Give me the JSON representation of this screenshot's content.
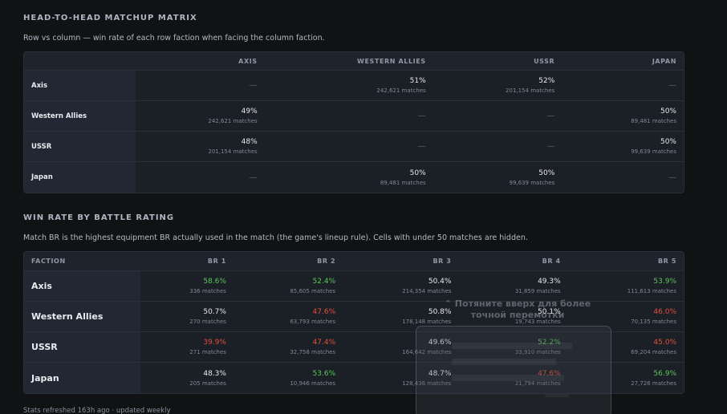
{
  "h2h": {
    "title": "HEAD-TO-HEAD MATCHUP MATRIX",
    "description": "Row vs column — win rate of each row faction when facing the column faction.",
    "columns": [
      "AXIS",
      "WESTERN ALLIES",
      "USSR",
      "JAPAN"
    ],
    "rows": [
      {
        "faction": "Axis",
        "cells": [
          {
            "pct": "—",
            "matches": ""
          },
          {
            "pct": "51%",
            "matches": "242,621 matches"
          },
          {
            "pct": "52%",
            "matches": "201,154 matches"
          },
          {
            "pct": "—",
            "matches": ""
          }
        ]
      },
      {
        "faction": "Western Allies",
        "cells": [
          {
            "pct": "49%",
            "matches": "242,621 matches"
          },
          {
            "pct": "—",
            "matches": ""
          },
          {
            "pct": "—",
            "matches": ""
          },
          {
            "pct": "50%",
            "matches": "89,481 matches"
          }
        ]
      },
      {
        "faction": "USSR",
        "cells": [
          {
            "pct": "48%",
            "matches": "201,154 matches"
          },
          {
            "pct": "—",
            "matches": ""
          },
          {
            "pct": "—",
            "matches": ""
          },
          {
            "pct": "50%",
            "matches": "99,639 matches"
          }
        ]
      },
      {
        "faction": "Japan",
        "cells": [
          {
            "pct": "—",
            "matches": ""
          },
          {
            "pct": "50%",
            "matches": "89,481 matches"
          },
          {
            "pct": "50%",
            "matches": "99,639 matches"
          },
          {
            "pct": "—",
            "matches": ""
          }
        ]
      }
    ]
  },
  "br": {
    "title": "WIN RATE BY BATTLE RATING",
    "description": "Match BR is the highest equipment BR actually used in the match (the game's lineup rule). Cells with under 50 matches are hidden.",
    "faction_header": "FACTION",
    "columns": [
      "BR 1",
      "BR 2",
      "BR 3",
      "BR 4",
      "BR 5"
    ],
    "rows": [
      {
        "faction": "Axis",
        "cells": [
          {
            "pct": "58.6%",
            "matches": "336 matches",
            "tone": "good"
          },
          {
            "pct": "52.4%",
            "matches": "85,605 matches",
            "tone": "good"
          },
          {
            "pct": "50.4%",
            "matches": "214,354 matches",
            "tone": "neutral"
          },
          {
            "pct": "49.3%",
            "matches": "31,859 matches",
            "tone": "neutral"
          },
          {
            "pct": "53.9%",
            "matches": "111,613 matches",
            "tone": "good"
          }
        ]
      },
      {
        "faction": "Western Allies",
        "cells": [
          {
            "pct": "50.7%",
            "matches": "270 matches",
            "tone": "neutral"
          },
          {
            "pct": "47.6%",
            "matches": "63,793 matches",
            "tone": "bad"
          },
          {
            "pct": "50.8%",
            "matches": "178,148 matches",
            "tone": "neutral"
          },
          {
            "pct": "50.1%",
            "matches": "19,743 matches",
            "tone": "neutral"
          },
          {
            "pct": "46.0%",
            "matches": "70,135 matches",
            "tone": "bad"
          }
        ]
      },
      {
        "faction": "USSR",
        "cells": [
          {
            "pct": "39.9%",
            "matches": "271 matches",
            "tone": "bad"
          },
          {
            "pct": "47.4%",
            "matches": "32,758 matches",
            "tone": "bad"
          },
          {
            "pct": "49.6%",
            "matches": "164,642 matches",
            "tone": "neutral"
          },
          {
            "pct": "52.2%",
            "matches": "33,910 matches",
            "tone": "good"
          },
          {
            "pct": "45.0%",
            "matches": "69,204 matches",
            "tone": "bad"
          }
        ]
      },
      {
        "faction": "Japan",
        "cells": [
          {
            "pct": "48.3%",
            "matches": "205 matches",
            "tone": "neutral"
          },
          {
            "pct": "53.6%",
            "matches": "10,946 matches",
            "tone": "good"
          },
          {
            "pct": "48.7%",
            "matches": "128,436 matches",
            "tone": "neutral"
          },
          {
            "pct": "47.6%",
            "matches": "21,794 matches",
            "tone": "bad"
          },
          {
            "pct": "56.9%",
            "matches": "27,726 matches",
            "tone": "good"
          }
        ]
      }
    ]
  },
  "footer": "Stats refreshed 163h ago · updated weekly",
  "overlay": {
    "hint": "⌃ Потяните вверх для более точной перемотки"
  },
  "colors": {
    "good": "#5cc65c",
    "bad": "#e4503c",
    "neutral": "#e6e9ee",
    "background": "#111214",
    "panel": "#1b1f26"
  }
}
